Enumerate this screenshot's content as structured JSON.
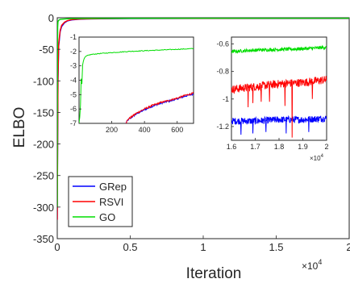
{
  "chart_data": [
    {
      "type": "line",
      "role": "main",
      "xlabel": "Iteration",
      "ylabel": "ELBO",
      "xlim": [
        0,
        20000
      ],
      "ylim": [
        -350,
        0
      ],
      "x_ticks": [
        0,
        5000,
        10000,
        15000,
        20000
      ],
      "x_tick_labels": [
        "0",
        "0.5",
        "1",
        "1.5",
        "2"
      ],
      "x_exponent": "×10",
      "x_exponent_power": "4",
      "y_ticks": [
        0,
        -50,
        -100,
        -150,
        -200,
        -250,
        -300,
        -350
      ],
      "y_tick_labels": [
        "0",
        "-50",
        "-100",
        "-150",
        "-200",
        "-250",
        "-300",
        "-350"
      ],
      "grid": false,
      "legend": {
        "position": "bottom-left",
        "entries": [
          "GRep",
          "RSVI",
          "GO"
        ]
      },
      "series": [
        {
          "name": "GRep",
          "color": "#0000ff",
          "x": [
            0,
            50,
            100,
            200,
            300,
            500,
            700,
            1000,
            1500,
            2000,
            3000,
            5000,
            10000,
            15000,
            20000
          ],
          "y": [
            -320,
            -100,
            -45,
            -22,
            -14,
            -8,
            -5,
            -3.5,
            -2.5,
            -2,
            -1.6,
            -1.4,
            -1.25,
            -1.2,
            -1.2
          ]
        },
        {
          "name": "RSVI",
          "color": "#ff0000",
          "x": [
            0,
            50,
            100,
            200,
            300,
            500,
            700,
            1000,
            1500,
            2000,
            3000,
            5000,
            10000,
            15000,
            20000
          ],
          "y": [
            -320,
            -95,
            -40,
            -20,
            -12,
            -7,
            -4.5,
            -3,
            -2.2,
            -1.8,
            -1.4,
            -1.1,
            -0.95,
            -0.9,
            -0.88
          ]
        },
        {
          "name": "GO",
          "color": "#00dd00",
          "x": [
            0,
            10,
            20,
            30,
            50,
            100,
            200,
            400,
            700,
            1000,
            2000,
            5000,
            10000,
            15000,
            20000
          ],
          "y": [
            -300,
            -110,
            -40,
            -15,
            -6,
            -4,
            -2.6,
            -2.1,
            -1.7,
            -1.4,
            -1.0,
            -0.8,
            -0.68,
            -0.64,
            -0.62
          ]
        }
      ]
    },
    {
      "type": "line",
      "role": "inset-left",
      "xlim": [
        0,
        700
      ],
      "ylim": [
        -7,
        -1
      ],
      "x_ticks": [
        200,
        400,
        600
      ],
      "x_tick_labels": [
        "200",
        "400",
        "600"
      ],
      "y_ticks": [
        -1,
        -2,
        -3,
        -4,
        -5,
        -6,
        -7
      ],
      "y_tick_labels": [
        "-1",
        "-2",
        "-3",
        "-4",
        "-5",
        "-6",
        "-7"
      ],
      "series": [
        {
          "name": "GRep",
          "color": "#0000ff",
          "x": [
            285,
            300,
            350,
            400,
            450,
            500,
            550,
            600,
            650,
            700
          ],
          "y": [
            -7,
            -6.75,
            -6.35,
            -6.05,
            -5.8,
            -5.6,
            -5.45,
            -5.3,
            -5.1,
            -4.95
          ]
        },
        {
          "name": "RSVI",
          "color": "#ff0000",
          "x": [
            285,
            300,
            350,
            400,
            450,
            500,
            550,
            600,
            650,
            700
          ],
          "y": [
            -7,
            -6.72,
            -6.3,
            -6.0,
            -5.75,
            -5.55,
            -5.4,
            -5.25,
            -5.05,
            -4.9
          ]
        },
        {
          "name": "GO",
          "color": "#00dd00",
          "x": [
            0,
            8,
            12,
            18,
            22,
            28,
            33,
            40,
            60,
            80,
            120,
            200,
            300,
            400,
            500,
            600,
            700
          ],
          "y": [
            -7,
            -6.2,
            -3.8,
            -4.3,
            -2.9,
            -2.6,
            -2.45,
            -2.35,
            -2.25,
            -2.2,
            -2.15,
            -2.08,
            -2.0,
            -1.95,
            -1.9,
            -1.85,
            -1.8
          ]
        }
      ]
    },
    {
      "type": "line",
      "role": "inset-right",
      "xlim": [
        16000,
        20000
      ],
      "ylim": [
        -1.3,
        -0.55
      ],
      "x_ticks": [
        16000,
        17000,
        18000,
        19000,
        20000
      ],
      "x_tick_labels": [
        "1.6",
        "1.7",
        "1.8",
        "1.9",
        "2"
      ],
      "x_minor_labels": [
        "1.65",
        "1.75",
        "1.85",
        "1.95"
      ],
      "x_minor_label_text": [
        "",
        "",
        "",
        ""
      ],
      "x_exponent": "×10",
      "x_exponent_power": "4",
      "y_ticks": [
        -0.6,
        -0.8,
        -1.0,
        -1.2
      ],
      "y_tick_labels": [
        "-0.6",
        "-0.8",
        "-1",
        "-1.2"
      ],
      "series": [
        {
          "name": "GRep",
          "color": "#0000ff",
          "x": [
            16000,
            17000,
            18000,
            19000,
            20000
          ],
          "y": [
            -1.16,
            -1.16,
            -1.15,
            -1.15,
            -1.14
          ]
        },
        {
          "name": "RSVI",
          "color": "#ff0000",
          "x": [
            16000,
            17000,
            18000,
            19000,
            20000
          ],
          "y": [
            -0.93,
            -0.91,
            -0.89,
            -0.88,
            -0.86
          ]
        },
        {
          "name": "GO",
          "color": "#00dd00",
          "x": [
            16000,
            17000,
            18000,
            19000,
            20000
          ],
          "y": [
            -0.655,
            -0.645,
            -0.64,
            -0.635,
            -0.625
          ]
        }
      ],
      "dips": {
        "RSVI_x": [
          16700,
          16900,
          17250,
          17600,
          18250,
          18550,
          19400
        ],
        "RSVI_y": [
          -1.06,
          -1.03,
          -1.02,
          -1.02,
          -1.05,
          -1.28,
          -1.0
        ],
        "GRep_x": [
          16400,
          16900,
          17450,
          18300,
          19250
        ],
        "GRep_y": [
          -1.26,
          -1.25,
          -1.24,
          -1.25,
          -1.24
        ]
      }
    }
  ]
}
